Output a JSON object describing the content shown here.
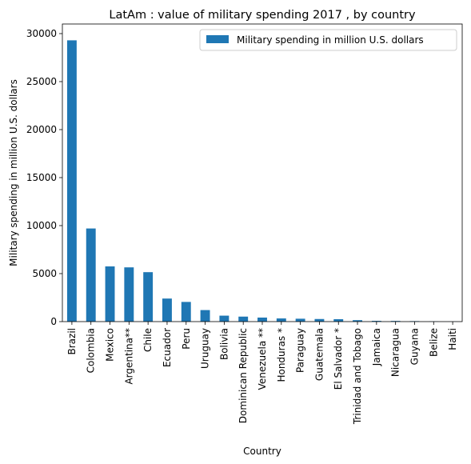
{
  "chart_data": {
    "type": "bar",
    "title": "LatAm : value of military spending 2017 , by country",
    "xlabel": "Country",
    "ylabel": "Military spending in million U.S. dollars",
    "ylim": [
      0,
      31000
    ],
    "yticks": [
      0,
      5000,
      10000,
      15000,
      20000,
      25000,
      30000
    ],
    "grid": false,
    "legend_position": "top-right",
    "color": "#1f77b4",
    "categories": [
      "Brazil",
      "Colombia",
      "Mexico",
      "Argentina**",
      "Chile",
      "Ecuador",
      "Peru",
      "Uruguay",
      "Bolivia",
      "Dominican Republic",
      "Venezuela **",
      "Honduras *",
      "Paraguay",
      "Guatemala",
      "El Salvador *",
      "Trinidad and Tobago",
      "Jamaica",
      "Nicaragua",
      "Guyana",
      "Belize",
      "Haiti"
    ],
    "series": [
      {
        "name": "Military spending in million U.S. dollars",
        "values": [
          29300,
          9700,
          5750,
          5650,
          5150,
          2400,
          2050,
          1200,
          620,
          520,
          420,
          330,
          300,
          270,
          250,
          150,
          80,
          70,
          50,
          20,
          10
        ]
      }
    ]
  }
}
